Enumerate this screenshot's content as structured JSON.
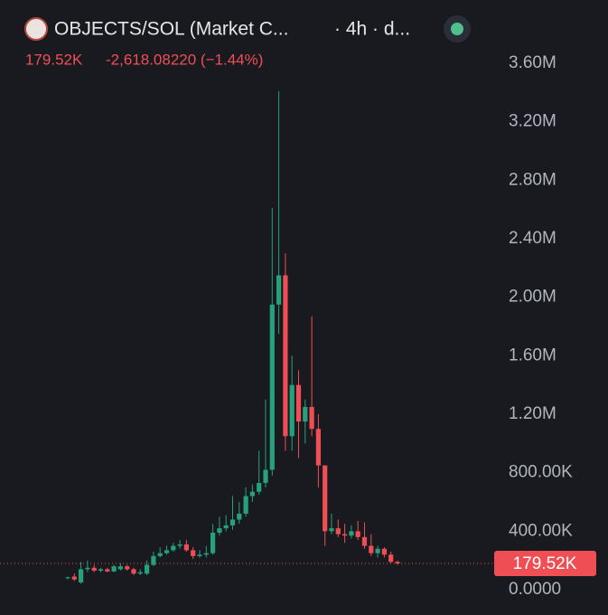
{
  "chart_data": {
    "type": "candlestick",
    "title": "OBJECTS/SOL (Market C...",
    "subtitle": "· 4h · d...",
    "last_price": {
      "value": 179520,
      "label": "179.52K"
    },
    "change": "-2,618.08220 (−1.44%)",
    "up_color": "#26a17b",
    "down_color": "#ef4f54",
    "ylim": [
      -173000,
      4033000
    ],
    "yticks": [
      {
        "value": 0,
        "label": "0.0000"
      },
      {
        "value": 400000,
        "label": "400.00K"
      },
      {
        "value": 800000,
        "label": "800.00K"
      },
      {
        "value": 1200000,
        "label": "1.20M"
      },
      {
        "value": 1600000,
        "label": "1.60M"
      },
      {
        "value": 2000000,
        "label": "2.00M"
      },
      {
        "value": 2400000,
        "label": "2.40M"
      },
      {
        "value": 2800000,
        "label": "2.80M"
      },
      {
        "value": 3200000,
        "label": "3.20M"
      },
      {
        "value": 3600000,
        "label": "3.60M"
      }
    ],
    "categories": [
      null,
      null,
      null,
      null,
      null,
      null,
      null,
      null,
      null,
      null,
      null,
      null,
      null,
      null,
      null,
      null,
      null,
      null,
      null,
      null,
      null,
      null,
      null,
      null,
      null,
      null,
      null,
      null,
      null,
      null,
      null,
      null,
      null,
      null,
      null,
      null,
      null,
      null,
      null,
      null,
      null,
      null,
      null,
      null,
      null,
      null,
      null,
      null,
      null,
      null,
      null
    ],
    "open": [
      80000,
      90000,
      50000,
      140000,
      150000,
      130000,
      140000,
      125000,
      140000,
      160000,
      140000,
      110000,
      110000,
      170000,
      230000,
      250000,
      270000,
      300000,
      310000,
      270000,
      230000,
      240000,
      250000,
      390000,
      420000,
      440000,
      480000,
      520000,
      640000,
      670000,
      730000,
      820000,
      1950000,
      2150000,
      1050000,
      1400000,
      1150000,
      1250000,
      1100000,
      850000,
      400000,
      420000,
      380000,
      370000,
      400000,
      360000,
      300000,
      250000,
      280000,
      240000,
      190000
    ],
    "high": [
      90000,
      110000,
      190000,
      200000,
      170000,
      150000,
      150000,
      170000,
      180000,
      170000,
      150000,
      140000,
      200000,
      260000,
      290000,
      300000,
      320000,
      340000,
      340000,
      290000,
      270000,
      300000,
      450000,
      500000,
      510000,
      640000,
      600000,
      700000,
      720000,
      950000,
      1300000,
      2610000,
      3410000,
      2300000,
      1600000,
      1500000,
      1300000,
      1870000,
      1200000,
      850000,
      520000,
      480000,
      450000,
      440000,
      470000,
      460000,
      380000,
      300000,
      290000,
      260000,
      200000
    ],
    "low": [
      70000,
      60000,
      40000,
      120000,
      120000,
      120000,
      120000,
      120000,
      130000,
      130000,
      100000,
      100000,
      100000,
      160000,
      220000,
      240000,
      260000,
      280000,
      260000,
      210000,
      220000,
      220000,
      240000,
      370000,
      400000,
      410000,
      450000,
      500000,
      600000,
      650000,
      700000,
      780000,
      1750000,
      950000,
      950000,
      900000,
      1000000,
      1050000,
      700000,
      300000,
      380000,
      360000,
      320000,
      350000,
      340000,
      280000,
      230000,
      220000,
      220000,
      180000,
      170000
    ],
    "close": [
      85000,
      70000,
      140000,
      150000,
      130000,
      140000,
      125000,
      160000,
      160000,
      140000,
      110000,
      120000,
      170000,
      230000,
      250000,
      270000,
      300000,
      310000,
      270000,
      230000,
      240000,
      250000,
      390000,
      420000,
      440000,
      480000,
      520000,
      640000,
      670000,
      730000,
      820000,
      1950000,
      2150000,
      1050000,
      1400000,
      1150000,
      1250000,
      1100000,
      850000,
      400000,
      420000,
      380000,
      370000,
      400000,
      360000,
      300000,
      250000,
      280000,
      240000,
      190000,
      179520
    ]
  }
}
